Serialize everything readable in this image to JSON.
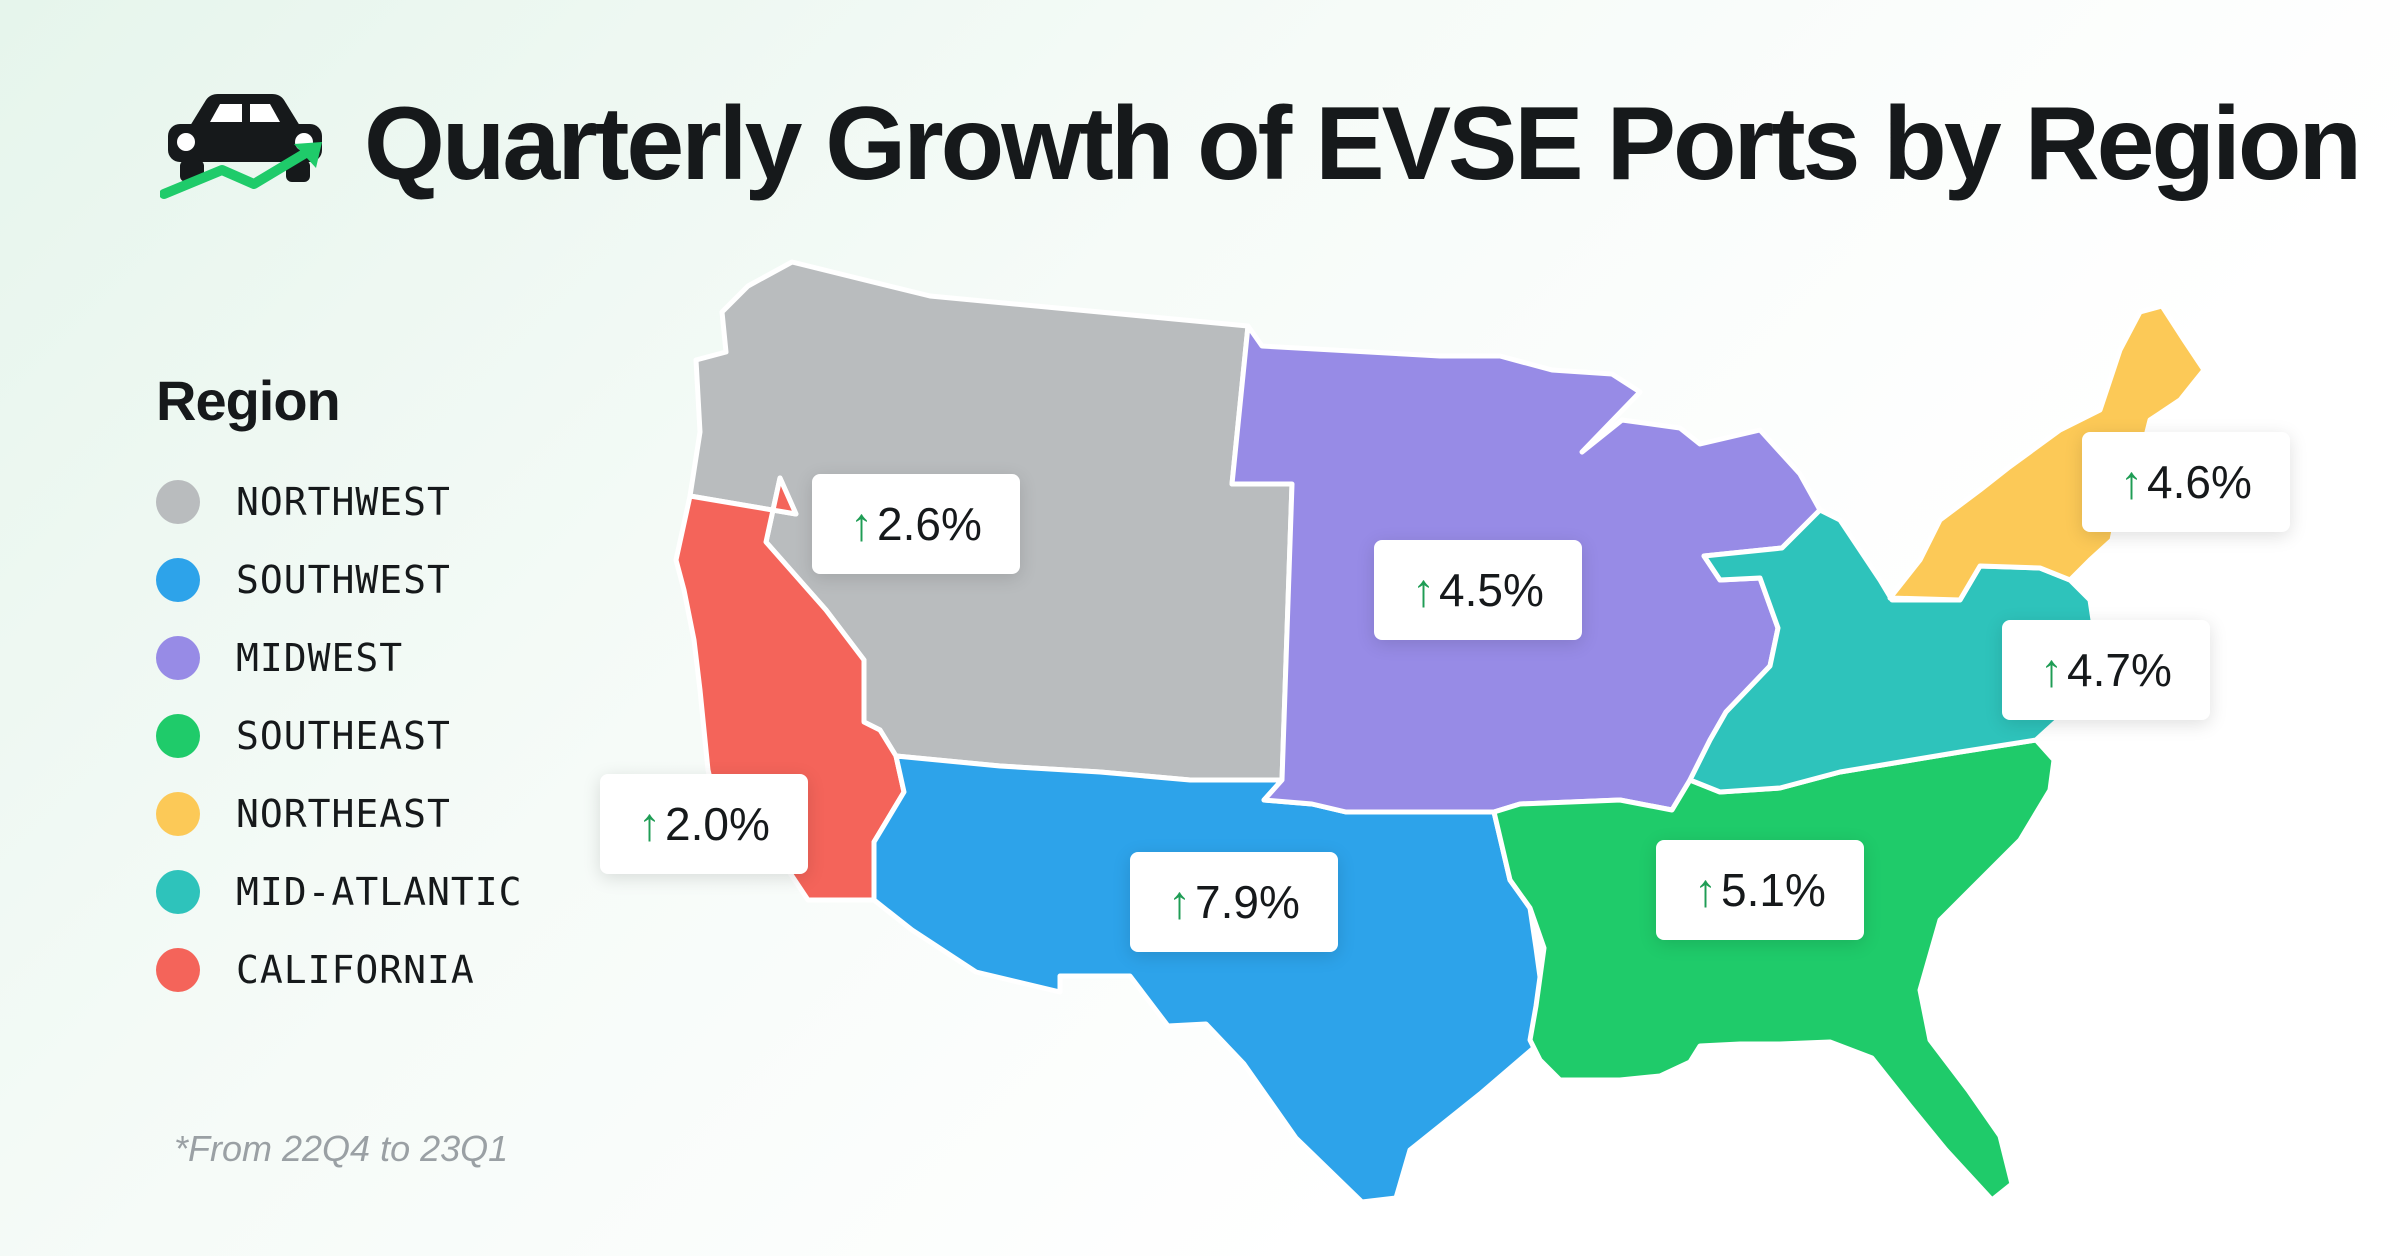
{
  "title": "Quarterly Growth of EVSE Ports by Region",
  "legend": {
    "title": "Region",
    "items": [
      {
        "label": "NORTHWEST",
        "color": "#b9bcbe"
      },
      {
        "label": "SOUTHWEST",
        "color": "#2da3ea"
      },
      {
        "label": "MIDWEST",
        "color": "#978be6"
      },
      {
        "label": "SOUTHEAST",
        "color": "#1fcb6a"
      },
      {
        "label": "NORTHEAST",
        "color": "#fcc957"
      },
      {
        "label": "MID-ATLANTIC",
        "color": "#2ec3bb"
      },
      {
        "label": "CALIFORNIA",
        "color": "#f4645a"
      }
    ]
  },
  "arrow_symbol": "↑",
  "growth": {
    "northwest": "2.6%",
    "california": "2.0%",
    "midwest": "4.5%",
    "southwest": "7.9%",
    "southeast": "5.1%",
    "northeast": "4.6%",
    "mid_atlantic": "4.7%"
  },
  "footnote": "*From 22Q4 to 23Q1"
}
